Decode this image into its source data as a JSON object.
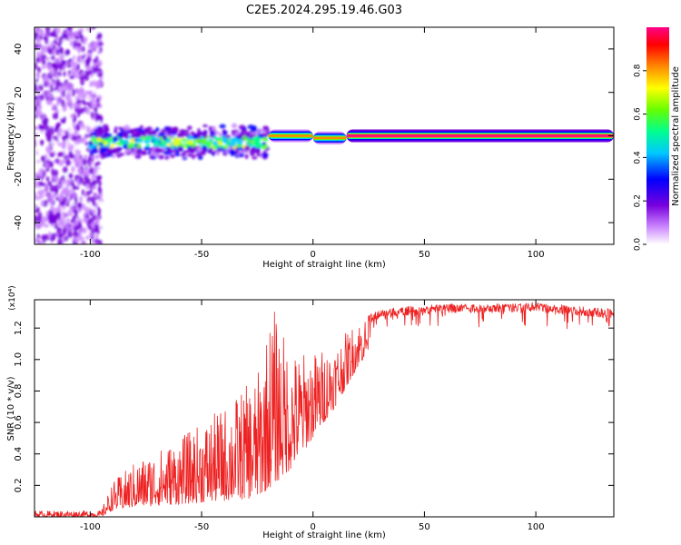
{
  "title": "C2E5.2024.295.19.46.G03",
  "chart_data": [
    {
      "type": "heatmap",
      "xlabel": "Height of straight line (km)",
      "ylabel": "Frequency (Hz)",
      "xlim": [
        -125,
        135
      ],
      "ylim": [
        -50,
        50
      ],
      "xticks": [
        -100,
        -50,
        0,
        50,
        100
      ],
      "yticks": [
        -40,
        -20,
        0,
        20,
        40
      ],
      "colorbar": {
        "label": "Normalized spectral amplitude",
        "range": [
          0,
          1
        ],
        "ticks": [
          0,
          0.2,
          0.4,
          0.6,
          0.8
        ],
        "colors": [
          "#ffffff",
          "#cc88ff",
          "#7700dd",
          "#0000ff",
          "#00c8ff",
          "#00ff90",
          "#66ff00",
          "#ffff00",
          "#ff8800",
          "#ff0000",
          "#ff0088"
        ]
      },
      "features": [
        {
          "x_range": [
            -125,
            -100
          ],
          "frequency_spread": [
            -50,
            50
          ],
          "amplitude": "low"
        },
        {
          "x_range": [
            -100,
            -20
          ],
          "frequency_center": -3,
          "frequency_spread": [
            -10,
            8
          ],
          "amplitude": "medium"
        },
        {
          "x_range": [
            -20,
            0
          ],
          "frequency_center": 0,
          "amplitude": "medium-high"
        },
        {
          "x_range": [
            0,
            15
          ],
          "frequency_center": -1,
          "amplitude": "medium-high"
        },
        {
          "x_range": [
            15,
            135
          ],
          "frequency_center": 0,
          "amplitude": "high"
        }
      ]
    },
    {
      "type": "line",
      "xlabel": "Height of straight line (km)",
      "ylabel": "SNR (10 * v/v)",
      "y_multiplier": "(x10⁴)",
      "xlim": [
        -125,
        135
      ],
      "ylim": [
        0,
        1.38
      ],
      "xticks": [
        -100,
        -50,
        0,
        50,
        100
      ],
      "yticks": [
        0.2,
        0.4,
        0.6,
        0.8,
        1.0,
        1.2
      ],
      "series_color": "#ee2222",
      "envelope": [
        {
          "x": -125,
          "low": 0.0,
          "high": 0.04
        },
        {
          "x": -95,
          "low": 0.0,
          "high": 0.04
        },
        {
          "x": -90,
          "low": 0.04,
          "high": 0.22
        },
        {
          "x": -80,
          "low": 0.06,
          "high": 0.35
        },
        {
          "x": -60,
          "low": 0.08,
          "high": 0.5
        },
        {
          "x": -40,
          "low": 0.1,
          "high": 0.7
        },
        {
          "x": -25,
          "low": 0.12,
          "high": 0.9
        },
        {
          "x": -18,
          "low": 0.2,
          "high": 1.35
        },
        {
          "x": -10,
          "low": 0.3,
          "high": 1.05
        },
        {
          "x": 0,
          "low": 0.5,
          "high": 1.05
        },
        {
          "x": 10,
          "low": 0.7,
          "high": 1.1
        },
        {
          "x": 20,
          "low": 0.95,
          "high": 1.25
        },
        {
          "x": 30,
          "low": 1.15,
          "high": 1.32
        },
        {
          "x": 50,
          "low": 1.2,
          "high": 1.35
        },
        {
          "x": 100,
          "low": 1.2,
          "high": 1.36
        },
        {
          "x": 135,
          "low": 1.18,
          "high": 1.32
        }
      ]
    }
  ]
}
